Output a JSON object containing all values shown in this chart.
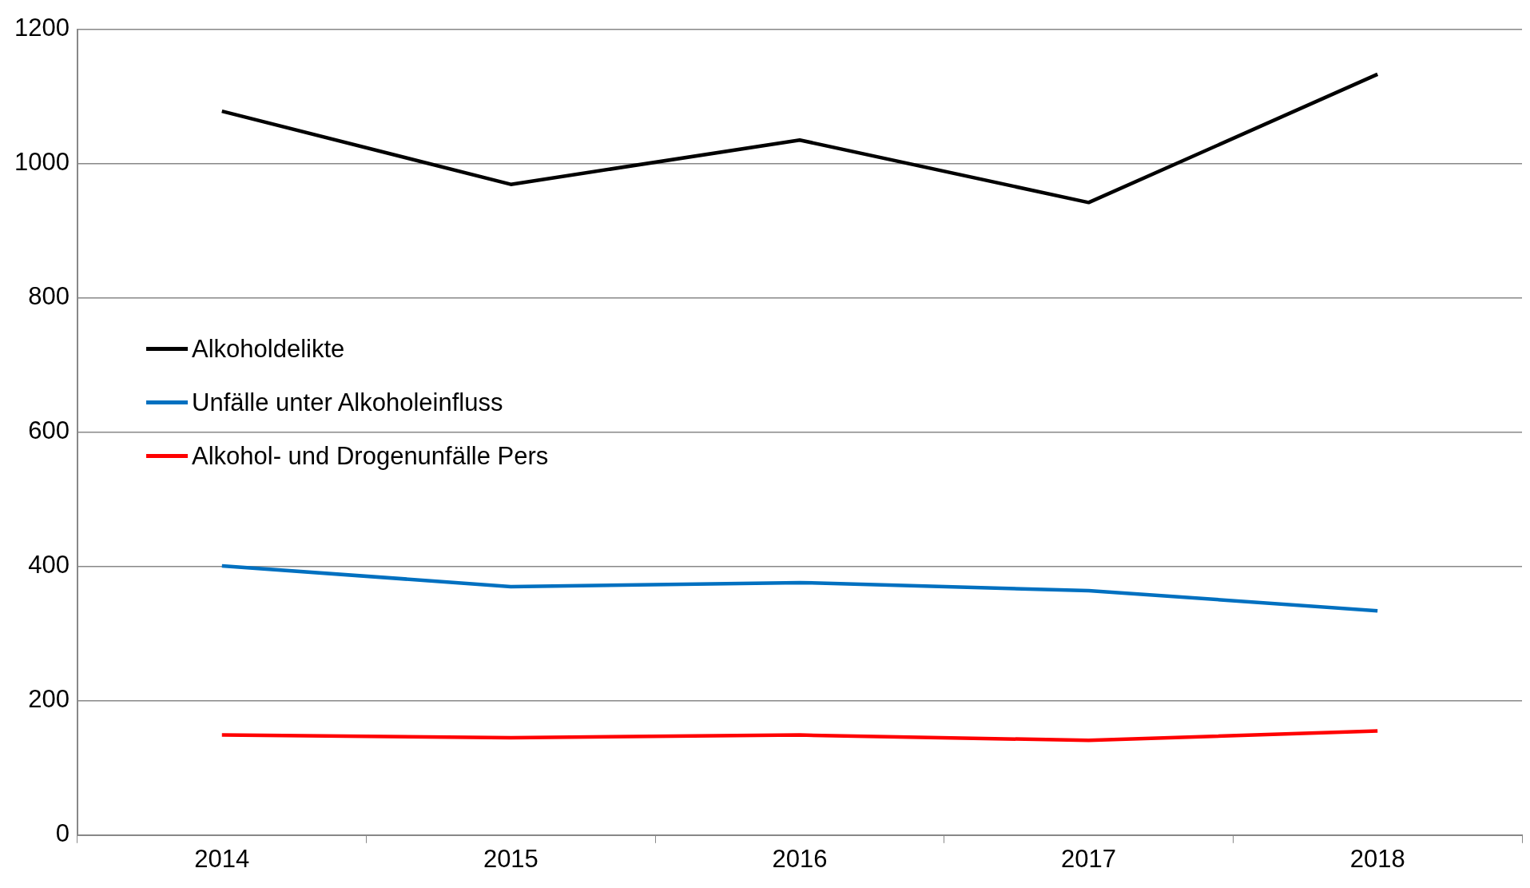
{
  "chart_data": {
    "type": "line",
    "categories": [
      "2014",
      "2015",
      "2016",
      "2017",
      "2018"
    ],
    "series": [
      {
        "name": "Alkoholdelikte",
        "color": "#000000",
        "values": [
          1078,
          969,
          1035,
          942,
          1133
        ]
      },
      {
        "name": "Unfälle unter Alkoholeinfluss",
        "color": "#0070c0",
        "values": [
          401,
          370,
          376,
          364,
          334
        ]
      },
      {
        "name": "Alkohol- und Drogenunfälle Pers",
        "color": "#ff0000",
        "values": [
          149,
          145,
          149,
          141,
          155
        ]
      }
    ],
    "ylim": [
      0,
      1200
    ],
    "yticks": [
      0,
      200,
      400,
      600,
      800,
      1000,
      1200
    ],
    "grid": "y",
    "legend": "left",
    "marker": "none",
    "line_style": "solid"
  }
}
